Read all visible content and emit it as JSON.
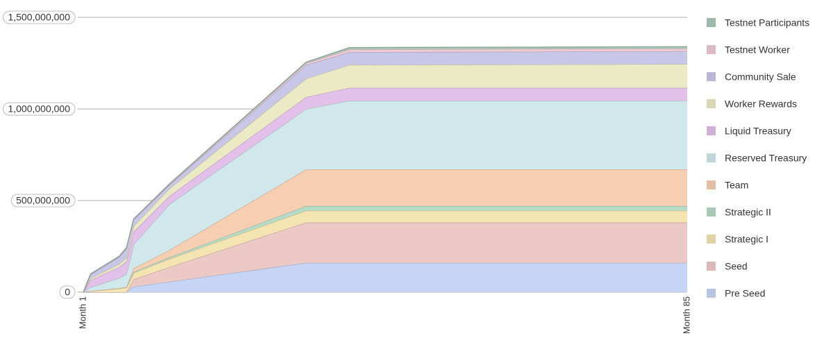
{
  "chart_data": {
    "type": "stacked_area",
    "x": [
      1,
      2,
      6,
      7,
      8,
      13,
      32,
      38,
      85
    ],
    "xlim": [
      1,
      85
    ],
    "xticks": [
      {
        "value": 1,
        "label": "Month 1"
      },
      {
        "value": 85,
        "label": "Month 85"
      }
    ],
    "ylim": [
      0,
      1500000000
    ],
    "yticks": [
      0,
      {
        "value": 500000000,
        "label": "500,000,000"
      },
      {
        "value": 1000000000,
        "label": "1,000,000,000"
      },
      {
        "value": 1500000000,
        "label": "1,500,000,000"
      }
    ],
    "grid": true,
    "legend": "right",
    "series": [
      {
        "name": "Pre Seed",
        "color": "#c6d5f6",
        "values": [
          0,
          0,
          0,
          0,
          30000000,
          57000000,
          160000000,
          160000000,
          160000000
        ]
      },
      {
        "name": "Seed",
        "color": "#edc9c6",
        "values": [
          0,
          0,
          0,
          0,
          40000000,
          80000000,
          220000000,
          220000000,
          220000000
        ]
      },
      {
        "name": "Strategic I",
        "color": "#f4e4b2",
        "values": [
          0,
          5000000,
          20000000,
          25000000,
          35000000,
          45000000,
          65000000,
          65000000,
          65000000
        ]
      },
      {
        "name": "Strategic II",
        "color": "#b6dcc7",
        "values": [
          0,
          1000000,
          2000000,
          3000000,
          5000000,
          8000000,
          25000000,
          25000000,
          25000000
        ]
      },
      {
        "name": "Team",
        "color": "#f6cfb2",
        "values": [
          0,
          0,
          0,
          0,
          20000000,
          40000000,
          200000000,
          200000000,
          200000000
        ]
      },
      {
        "name": "Reserved Treasury",
        "color": "#d0e8ec",
        "values": [
          0,
          20000000,
          55000000,
          70000000,
          130000000,
          250000000,
          330000000,
          375000000,
          375000000
        ]
      },
      {
        "name": "Liquid Treasury",
        "color": "#e2c0ea",
        "values": [
          0,
          40000000,
          60000000,
          70000000,
          70000000,
          45000000,
          65000000,
          70000000,
          70000000
        ]
      },
      {
        "name": "Worker Rewards",
        "color": "#ece9c5",
        "values": [
          0,
          10000000,
          15000000,
          20000000,
          30000000,
          40000000,
          100000000,
          125000000,
          130000000
        ]
      },
      {
        "name": "Community Sale",
        "color": "#c9c7e7",
        "values": [
          0,
          20000000,
          40000000,
          50000000,
          35000000,
          20000000,
          75000000,
          70000000,
          70000000
        ]
      },
      {
        "name": "Testnet Worker",
        "color": "#f0cbd4",
        "values": [
          0,
          2000000,
          3000000,
          3000000,
          3000000,
          4000000,
          10000000,
          15000000,
          15000000
        ]
      },
      {
        "name": "Testnet Participants",
        "color": "#aacab9",
        "values": [
          0,
          1000000,
          2000000,
          2000000,
          2000000,
          3000000,
          6000000,
          10000000,
          10000000
        ]
      }
    ]
  }
}
